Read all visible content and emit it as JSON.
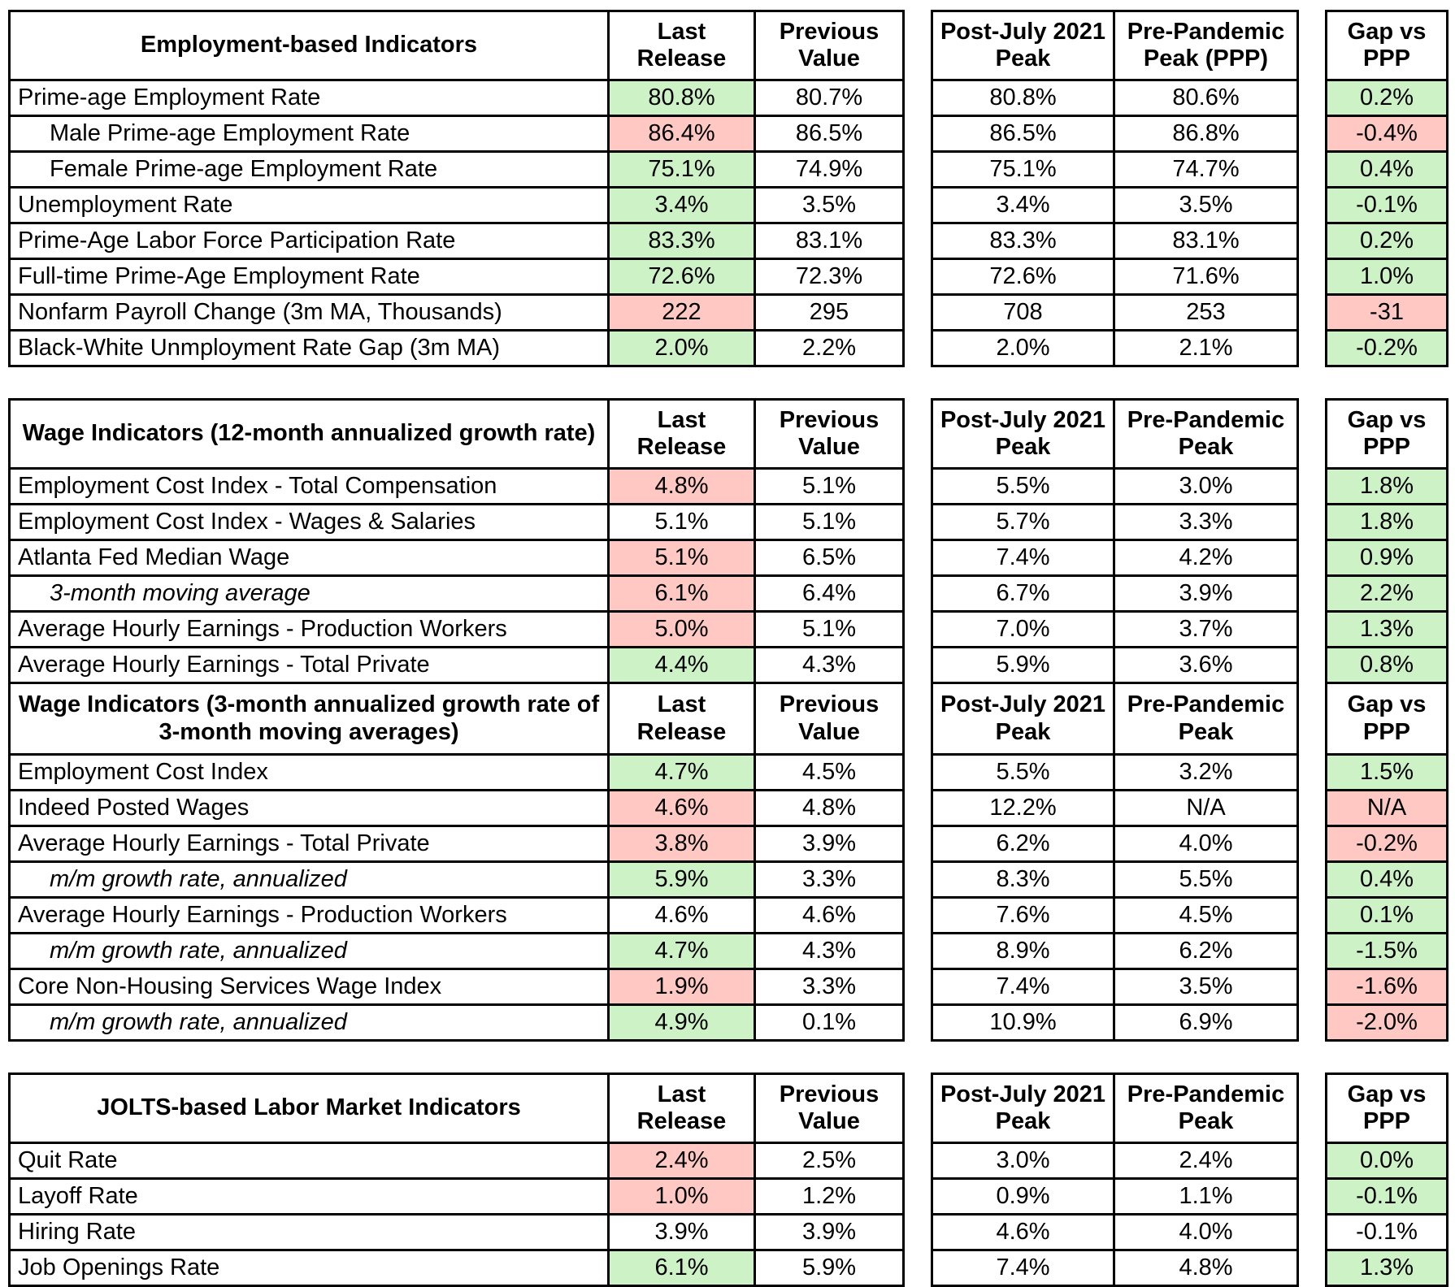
{
  "colors": {
    "green": "#ccf2c6",
    "red": "#ffc8c2",
    "border": "#000000",
    "text": "#000000"
  },
  "tables": [
    {
      "name": "employment-based-indicators",
      "sections": [
        {
          "header": {
            "name": "Employment-based Indicators",
            "last": "Last Release",
            "prev": "Previous Value",
            "post": "Post-July 2021 Peak",
            "pre": "Pre-Pandemic Peak (PPP)",
            "gap": "Gap vs PPP"
          },
          "rows": [
            {
              "name": "Prime-age Employment Rate",
              "variant": "normal",
              "last": "80.8%",
              "last_bg": "green",
              "prev": "80.7%",
              "post": "80.8%",
              "pre": "80.6%",
              "gap": "0.2%",
              "gap_bg": "green"
            },
            {
              "name": "Male Prime-age Employment Rate",
              "variant": "indent",
              "last": "86.4%",
              "last_bg": "red",
              "prev": "86.5%",
              "post": "86.5%",
              "pre": "86.8%",
              "gap": "-0.4%",
              "gap_bg": "red"
            },
            {
              "name": "Female Prime-age Employment Rate",
              "variant": "indent",
              "last": "75.1%",
              "last_bg": "green",
              "prev": "74.9%",
              "post": "75.1%",
              "pre": "74.7%",
              "gap": "0.4%",
              "gap_bg": "green"
            },
            {
              "name": "Unemployment Rate",
              "variant": "normal",
              "last": "3.4%",
              "last_bg": "green",
              "prev": "3.5%",
              "post": "3.4%",
              "pre": "3.5%",
              "gap": "-0.1%",
              "gap_bg": "green"
            },
            {
              "name": "Prime-Age Labor Force Participation Rate",
              "variant": "normal",
              "last": "83.3%",
              "last_bg": "green",
              "prev": "83.1%",
              "post": "83.3%",
              "pre": "83.1%",
              "gap": "0.2%",
              "gap_bg": "green"
            },
            {
              "name": "Full-time Prime-Age Employment Rate",
              "variant": "normal",
              "last": "72.6%",
              "last_bg": "green",
              "prev": "72.3%",
              "post": "72.6%",
              "pre": "71.6%",
              "gap": "1.0%",
              "gap_bg": "green"
            },
            {
              "name": "Nonfarm Payroll Change (3m MA, Thousands)",
              "variant": "normal",
              "last": "222",
              "last_bg": "red",
              "prev": "295",
              "post": "708",
              "pre": "253",
              "gap": "-31",
              "gap_bg": "red"
            },
            {
              "name": "Black-White Unmployment Rate Gap (3m MA)",
              "variant": "normal",
              "last": "2.0%",
              "last_bg": "green",
              "prev": "2.2%",
              "post": "2.0%",
              "pre": "2.1%",
              "gap": "-0.2%",
              "gap_bg": "green"
            }
          ]
        }
      ]
    },
    {
      "name": "wage-indicators",
      "sections": [
        {
          "header": {
            "name": "Wage Indicators (12-month annualized growth rate)",
            "last": "Last Release",
            "prev": "Previous Value",
            "post": "Post-July 2021 Peak",
            "pre": "Pre-Pandemic Peak",
            "gap": "Gap vs PPP"
          },
          "rows": [
            {
              "name": "Employment Cost Index - Total Compensation",
              "variant": "normal",
              "last": "4.8%",
              "last_bg": "red",
              "prev": "5.1%",
              "post": "5.5%",
              "pre": "3.0%",
              "gap": "1.8%",
              "gap_bg": "green"
            },
            {
              "name": "Employment Cost Index - Wages & Salaries",
              "variant": "normal",
              "last": "5.1%",
              "last_bg": "none",
              "prev": "5.1%",
              "post": "5.7%",
              "pre": "3.3%",
              "gap": "1.8%",
              "gap_bg": "green"
            },
            {
              "name": "Atlanta Fed Median Wage",
              "variant": "normal",
              "last": "5.1%",
              "last_bg": "red",
              "prev": "6.5%",
              "post": "7.4%",
              "pre": "4.2%",
              "gap": "0.9%",
              "gap_bg": "green"
            },
            {
              "name": "3-month moving average",
              "variant": "indent-italic",
              "last": "6.1%",
              "last_bg": "red",
              "prev": "6.4%",
              "post": "6.7%",
              "pre": "3.9%",
              "gap": "2.2%",
              "gap_bg": "green"
            },
            {
              "name": "Average Hourly Earnings - Production Workers",
              "variant": "normal",
              "last": "5.0%",
              "last_bg": "red",
              "prev": "5.1%",
              "post": "7.0%",
              "pre": "3.7%",
              "gap": "1.3%",
              "gap_bg": "green"
            },
            {
              "name": "Average Hourly Earnings - Total Private",
              "variant": "normal",
              "last": "4.4%",
              "last_bg": "green",
              "prev": "4.3%",
              "post": "5.9%",
              "pre": "3.6%",
              "gap": "0.8%",
              "gap_bg": "green"
            }
          ]
        },
        {
          "header": {
            "name": "Wage Indicators (3-month annualized growth rate of 3-month moving averages)",
            "last": "Last Release",
            "prev": "Previous Value",
            "post": "Post-July 2021 Peak",
            "pre": "Pre-Pandemic Peak",
            "gap": "Gap vs PPP"
          },
          "rows": [
            {
              "name": "Employment Cost Index",
              "variant": "normal",
              "last": "4.7%",
              "last_bg": "green",
              "prev": "4.5%",
              "post": "5.5%",
              "pre": "3.2%",
              "gap": "1.5%",
              "gap_bg": "green"
            },
            {
              "name": "Indeed Posted Wages",
              "variant": "normal",
              "last": "4.6%",
              "last_bg": "red",
              "prev": "4.8%",
              "post": "12.2%",
              "pre": "N/A",
              "gap": "N/A",
              "gap_bg": "red"
            },
            {
              "name": "Average Hourly Earnings - Total Private",
              "variant": "normal",
              "last": "3.8%",
              "last_bg": "red",
              "prev": "3.9%",
              "post": "6.2%",
              "pre": "4.0%",
              "gap": "-0.2%",
              "gap_bg": "red"
            },
            {
              "name": "m/m growth rate, annualized",
              "variant": "indent-italic",
              "last": "5.9%",
              "last_bg": "green",
              "prev": "3.3%",
              "post": "8.3%",
              "pre": "5.5%",
              "gap": "0.4%",
              "gap_bg": "green"
            },
            {
              "name": "Average Hourly Earnings - Production Workers",
              "variant": "normal",
              "last": "4.6%",
              "last_bg": "none",
              "prev": "4.6%",
              "post": "7.6%",
              "pre": "4.5%",
              "gap": "0.1%",
              "gap_bg": "green"
            },
            {
              "name": "m/m growth rate, annualized",
              "variant": "indent-italic",
              "last": "4.7%",
              "last_bg": "green",
              "prev": "4.3%",
              "post": "8.9%",
              "pre": "6.2%",
              "gap": "-1.5%",
              "gap_bg": "green"
            },
            {
              "name": "Core Non-Housing Services Wage Index",
              "variant": "normal",
              "last": "1.9%",
              "last_bg": "red",
              "prev": "3.3%",
              "post": "7.4%",
              "pre": "3.5%",
              "gap": "-1.6%",
              "gap_bg": "red"
            },
            {
              "name": "m/m growth rate, annualized",
              "variant": "indent-italic",
              "last": "4.9%",
              "last_bg": "green",
              "prev": "0.1%",
              "post": "10.9%",
              "pre": "6.9%",
              "gap": "-2.0%",
              "gap_bg": "red"
            }
          ]
        }
      ]
    },
    {
      "name": "jolts-based-labor-market-indicators",
      "sections": [
        {
          "header": {
            "name": "JOLTS-based Labor Market Indicators",
            "last": "Last Release",
            "prev": "Previous Value",
            "post": "Post-July 2021 Peak",
            "pre": "Pre-Pandemic Peak",
            "gap": "Gap vs PPP"
          },
          "rows": [
            {
              "name": "Quit Rate",
              "variant": "normal",
              "last": "2.4%",
              "last_bg": "red",
              "prev": "2.5%",
              "post": "3.0%",
              "pre": "2.4%",
              "gap": "0.0%",
              "gap_bg": "green"
            },
            {
              "name": "Layoff Rate",
              "variant": "normal",
              "last": "1.0%",
              "last_bg": "red",
              "prev": "1.2%",
              "post": "0.9%",
              "pre": "1.1%",
              "gap": "-0.1%",
              "gap_bg": "green"
            },
            {
              "name": "Hiring Rate",
              "variant": "normal",
              "last": "3.9%",
              "last_bg": "none",
              "prev": "3.9%",
              "post": "4.6%",
              "pre": "4.0%",
              "gap": "-0.1%",
              "gap_bg": "none"
            },
            {
              "name": "Job Openings Rate",
              "variant": "normal",
              "last": "6.1%",
              "last_bg": "green",
              "prev": "5.9%",
              "post": "7.4%",
              "pre": "4.8%",
              "gap": "1.3%",
              "gap_bg": "green"
            }
          ]
        }
      ]
    }
  ]
}
